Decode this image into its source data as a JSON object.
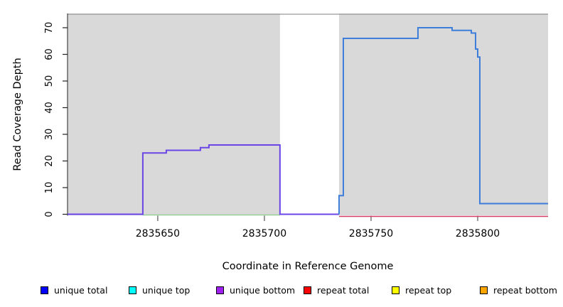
{
  "chart_data": {
    "type": "line",
    "title": "",
    "xlabel": "Coordinate in Reference Genome",
    "ylabel": "Read Coverage Depth",
    "xlim": [
      2835607.7,
      2835833
    ],
    "ylim": [
      0,
      75.2
    ],
    "x_ticks": [
      2835650,
      2835700,
      2835750,
      2835800
    ],
    "y_ticks": [
      0,
      10,
      20,
      30,
      40,
      50,
      60,
      70
    ],
    "grid": false,
    "legend_position": "bottom",
    "background_regions": [
      {
        "name": "unique-region-left",
        "x0": 2835607.7,
        "x1": 2835707.3,
        "color": "#d9d9d9"
      },
      {
        "name": "unique-region-right",
        "x0": 2835735,
        "x1": 2835833,
        "color": "#d9d9d9"
      }
    ],
    "series": [
      {
        "name": "unique-coverage-left-block",
        "color": "#6b46e6",
        "width": 2,
        "points": [
          [
            2835607.7,
            0
          ],
          [
            2835643,
            0
          ],
          [
            2835643,
            23
          ],
          [
            2835654,
            23
          ],
          [
            2835654,
            24
          ],
          [
            2835670,
            24
          ],
          [
            2835670,
            25
          ],
          [
            2835674,
            25
          ],
          [
            2835674,
            26
          ],
          [
            2835707.3,
            26
          ],
          [
            2835707.3,
            0
          ],
          [
            2835735,
            0
          ]
        ]
      },
      {
        "name": "coverage-right-block",
        "color": "#3d7edb",
        "width": 2,
        "points": [
          [
            2835735,
            0
          ],
          [
            2835735,
            7
          ],
          [
            2835737,
            7
          ],
          [
            2835737,
            66
          ],
          [
            2835772,
            66
          ],
          [
            2835772,
            70
          ],
          [
            2835788,
            70
          ],
          [
            2835788,
            69
          ],
          [
            2835797,
            69
          ],
          [
            2835797,
            68
          ],
          [
            2835799,
            68
          ],
          [
            2835799,
            62
          ],
          [
            2835800,
            62
          ],
          [
            2835800,
            59
          ],
          [
            2835801,
            59
          ],
          [
            2835801,
            4
          ],
          [
            2835833,
            4
          ]
        ]
      },
      {
        "name": "zero-baseline-green",
        "color": "#98cf98",
        "width": 1.5,
        "points": [
          [
            2835643,
            0
          ],
          [
            2835707.3,
            0
          ]
        ]
      },
      {
        "name": "zero-baseline-red",
        "color": "#d14064",
        "width": 1.5,
        "points": [
          [
            2835735,
            0
          ],
          [
            2835833,
            0
          ]
        ]
      }
    ],
    "legend": [
      {
        "label": "unique total",
        "color": "#0000ff"
      },
      {
        "label": "unique top",
        "color": "#00ffff"
      },
      {
        "label": "unique bottom",
        "color": "#a020f0"
      },
      {
        "label": "repeat total",
        "color": "#ff0000"
      },
      {
        "label": "repeat top",
        "color": "#ffff00"
      },
      {
        "label": "repeat bottom",
        "color": "#ffa500"
      }
    ]
  }
}
